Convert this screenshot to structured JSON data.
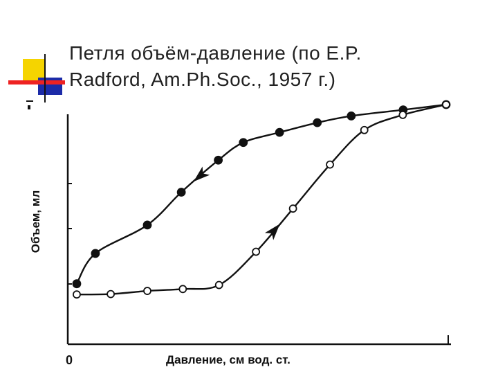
{
  "title_lines": [
    "Петля объём-давление (по E.P.",
    "Radford, Am.Ph.Soc., 1957 г.)"
  ],
  "colors": {
    "yellow": "#f5d400",
    "blue": "#1c2ba8",
    "red": "#ee2222",
    "ink": "#111111"
  },
  "chart_data": {
    "type": "line",
    "xlabel": "Давление, см вод. ст.",
    "ylabel": "Объем, мл",
    "origin_label": "0",
    "xlim": [
      0,
      100
    ],
    "ylim": [
      0,
      100
    ],
    "grid": false,
    "series": [
      {
        "marker": "filled",
        "direction": "decreasing",
        "x": [
          1.1,
          6.1,
          20.0,
          29.1,
          39.0,
          45.7,
          55.4,
          65.5,
          74.6,
          88.5,
          100
        ],
        "y": [
          14.9,
          29.3,
          42.8,
          58.4,
          73.6,
          82.0,
          86.8,
          91.4,
          94.6,
          97.5,
          100
        ]
      },
      {
        "marker": "open",
        "direction": "increasing",
        "x": [
          1.1,
          10.2,
          20.0,
          29.5,
          39.2,
          49.1,
          59.0,
          68.9,
          78.1,
          88.4,
          100
        ],
        "y": [
          9.8,
          10.0,
          11.5,
          12.4,
          14.3,
          30.1,
          50.6,
          71.5,
          87.9,
          95.1,
          100
        ]
      }
    ]
  }
}
